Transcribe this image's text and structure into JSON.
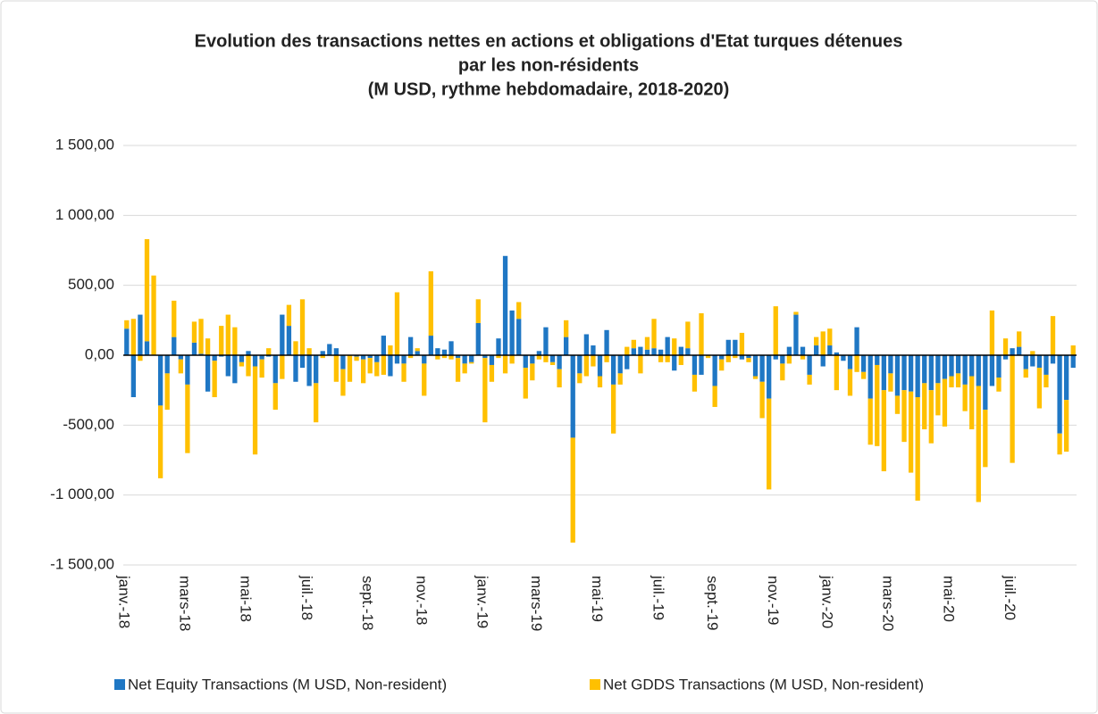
{
  "chart_data": {
    "type": "stacked_bar",
    "title": [
      "Evolution des transactions nettes en actions et obligations d'Etat turques détenues",
      "par les non-résidents",
      "(M USD, rythme hebdomadaire, 2018-2020)"
    ],
    "categories": [
      "janv.-18",
      null,
      null,
      null,
      null,
      null,
      null,
      null,
      null,
      "mars-18",
      null,
      null,
      null,
      null,
      null,
      null,
      null,
      null,
      "mai-18",
      null,
      null,
      null,
      null,
      null,
      null,
      null,
      null,
      "juil.-18",
      null,
      null,
      null,
      null,
      null,
      null,
      null,
      null,
      "sept.-18",
      null,
      null,
      null,
      null,
      null,
      null,
      null,
      "nov.-18",
      null,
      null,
      null,
      null,
      null,
      null,
      null,
      null,
      "janv.-19",
      null,
      null,
      null,
      null,
      null,
      null,
      null,
      "mars-19",
      null,
      null,
      null,
      null,
      null,
      null,
      null,
      null,
      "mai-19",
      null,
      null,
      null,
      null,
      null,
      null,
      null,
      null,
      "juil.-19",
      null,
      null,
      null,
      null,
      null,
      null,
      null,
      "sept.-19",
      null,
      null,
      null,
      null,
      null,
      null,
      null,
      null,
      "nov.-19",
      null,
      null,
      null,
      null,
      null,
      null,
      null,
      "janv.-20",
      null,
      null,
      null,
      null,
      null,
      null,
      null,
      null,
      "mars-20",
      null,
      null,
      null,
      null,
      null,
      null,
      null,
      null,
      "mai-20",
      null,
      null,
      null,
      null,
      null,
      null,
      null,
      null,
      "juil.-20",
      null,
      null,
      null,
      null,
      null,
      null,
      null,
      null,
      null
    ],
    "series": [
      {
        "name": "Net Equity Transactions (M USD, Non-resident)",
        "color": "#1f77c4",
        "values": [
          190,
          -300,
          290,
          100,
          0,
          -360,
          -130,
          130,
          -30,
          -210,
          90,
          10,
          -260,
          -40,
          -10,
          -150,
          -200,
          -50,
          30,
          -80,
          -30,
          -10,
          -200,
          290,
          210,
          -190,
          -90,
          -220,
          -200,
          30,
          80,
          50,
          -100,
          0,
          -10,
          -30,
          -20,
          -50,
          140,
          -150,
          -60,
          -60,
          130,
          30,
          -60,
          140,
          50,
          40,
          100,
          -20,
          -60,
          -50,
          230,
          -20,
          -70,
          120,
          710,
          320,
          260,
          -90,
          -60,
          30,
          200,
          -50,
          -100,
          130,
          -590,
          -130,
          150,
          70,
          -150,
          180,
          -210,
          -130,
          -100,
          50,
          60,
          40,
          50,
          40,
          130,
          -110,
          60,
          50,
          -140,
          -140,
          0,
          -220,
          -30,
          110,
          110,
          -30,
          -20,
          -150,
          -190,
          -310,
          -30,
          -60,
          60,
          290,
          60,
          -140,
          70,
          -80,
          70,
          20,
          -40,
          -100,
          200,
          -120,
          -310,
          -70,
          -250,
          -130,
          -290,
          -250,
          -260,
          -300,
          -200,
          -250,
          -200,
          -170,
          -150,
          -130,
          -210,
          -150,
          -220,
          -390,
          -220,
          -160,
          -30,
          50,
          60,
          -100,
          -80,
          -90,
          -140,
          -60,
          -560,
          -320,
          -90
        ]
      },
      {
        "name": "Net GDDS Transactions (M USD, Non-resident)",
        "color": "#ffc000",
        "values": [
          60,
          260,
          -40,
          730,
          570,
          -520,
          -260,
          260,
          -100,
          -490,
          150,
          250,
          120,
          -260,
          210,
          290,
          200,
          -30,
          -150,
          -630,
          -130,
          50,
          -190,
          -170,
          150,
          100,
          400,
          50,
          -280,
          -20,
          0,
          -190,
          -190,
          -190,
          -30,
          -170,
          -110,
          -100,
          -140,
          70,
          450,
          -130,
          -20,
          20,
          -230,
          460,
          -30,
          -20,
          -30,
          -170,
          -70,
          -10,
          170,
          -460,
          -120,
          -20,
          -130,
          -60,
          120,
          -220,
          -120,
          -30,
          -50,
          -20,
          -130,
          120,
          -750,
          -70,
          -150,
          -80,
          -80,
          -50,
          -350,
          -80,
          60,
          60,
          -130,
          90,
          210,
          -50,
          -50,
          120,
          -70,
          190,
          -120,
          300,
          -20,
          -150,
          -80,
          -50,
          -20,
          160,
          -30,
          -20,
          -260,
          -650,
          350,
          -120,
          -60,
          20,
          -30,
          -70,
          60,
          170,
          120,
          -250,
          0,
          -190,
          -120,
          -50,
          -330,
          -580,
          -580,
          -130,
          -130,
          -370,
          -580,
          -740,
          -330,
          -380,
          -230,
          -340,
          -80,
          -100,
          -190,
          -380,
          -830,
          -410,
          320,
          -100,
          120,
          -770,
          110,
          -60,
          30,
          -290,
          -90,
          280,
          -150,
          -370,
          70
        ]
      }
    ],
    "ylim": [
      -1500,
      1500
    ],
    "yticks": [
      {
        "value": -1500,
        "label": "-1 500,00"
      },
      {
        "value": -1000,
        "label": "-1 000,00"
      },
      {
        "value": -500,
        "label": "-500,00"
      },
      {
        "value": 0,
        "label": "0,00"
      },
      {
        "value": 500,
        "label": "500,00"
      },
      {
        "value": 1000,
        "label": "1 000,00"
      },
      {
        "value": 1500,
        "label": "1 500,00"
      }
    ],
    "grid": true,
    "legend": "bottom"
  }
}
